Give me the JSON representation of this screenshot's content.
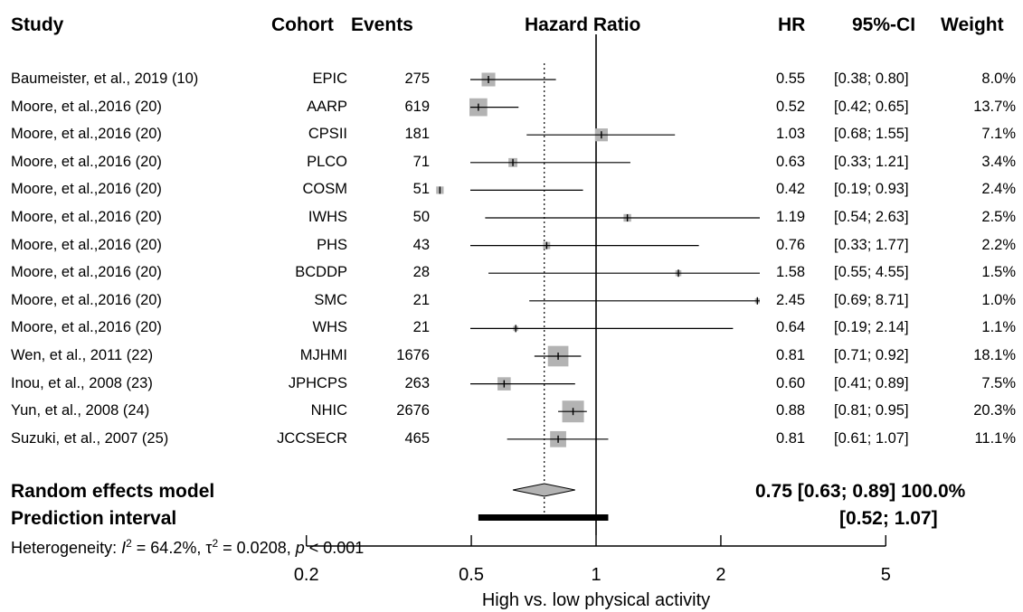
{
  "headers": {
    "study": "Study",
    "cohort": "Cohort",
    "events": "Events",
    "plot": "Hazard Ratio",
    "hr": "HR",
    "ci": "95%-CI",
    "weight": "Weight"
  },
  "chart_data": {
    "type": "forest",
    "x_scale": "log",
    "xlim": [
      0.2,
      5
    ],
    "x_ticks": [
      "0.2",
      "0.5",
      "1",
      "2",
      "5"
    ],
    "xlabel": "High vs. low physical activity",
    "null_line": 1,
    "pooled_line": 0.75,
    "studies": [
      {
        "study": "Baumeister, et al., 2019 (10)",
        "cohort": "EPIC",
        "events": "275",
        "hr": 0.55,
        "lo": 0.38,
        "hi": 0.8,
        "hr_text": "0.55",
        "ci_text": "[0.38; 0.80]",
        "weight_text": "8.0%",
        "weight": 8.0
      },
      {
        "study": "Moore, et al.,2016 (20)",
        "cohort": "AARP",
        "events": "619",
        "hr": 0.52,
        "lo": 0.42,
        "hi": 0.65,
        "hr_text": "0.52",
        "ci_text": "[0.42; 0.65]",
        "weight_text": "13.7%",
        "weight": 13.7
      },
      {
        "study": "Moore, et al.,2016 (20)",
        "cohort": "CPSII",
        "events": "181",
        "hr": 1.03,
        "lo": 0.68,
        "hi": 1.55,
        "hr_text": "1.03",
        "ci_text": "[0.68; 1.55]",
        "weight_text": "7.1%",
        "weight": 7.1
      },
      {
        "study": "Moore, et al.,2016 (20)",
        "cohort": "PLCO",
        "events": "71",
        "hr": 0.63,
        "lo": 0.33,
        "hi": 1.21,
        "hr_text": "0.63",
        "ci_text": "[0.33; 1.21]",
        "weight_text": "3.4%",
        "weight": 3.4
      },
      {
        "study": "Moore, et al.,2016 (20)",
        "cohort": "COSM",
        "events": "51",
        "hr": 0.42,
        "lo": 0.19,
        "hi": 0.93,
        "hr_text": "0.42",
        "ci_text": "[0.19; 0.93]",
        "weight_text": "2.4%",
        "weight": 2.4
      },
      {
        "study": "Moore, et al.,2016 (20)",
        "cohort": "IWHS",
        "events": "50",
        "hr": 1.19,
        "lo": 0.54,
        "hi": 2.63,
        "hr_text": "1.19",
        "ci_text": "[0.54; 2.63]",
        "weight_text": "2.5%",
        "weight": 2.5
      },
      {
        "study": "Moore, et al.,2016 (20)",
        "cohort": "PHS",
        "events": "43",
        "hr": 0.76,
        "lo": 0.33,
        "hi": 1.77,
        "hr_text": "0.76",
        "ci_text": "[0.33; 1.77]",
        "weight_text": "2.2%",
        "weight": 2.2
      },
      {
        "study": "Moore, et al.,2016 (20)",
        "cohort": "BCDDP",
        "events": "28",
        "hr": 1.58,
        "lo": 0.55,
        "hi": 4.55,
        "hr_text": "1.58",
        "ci_text": "[0.55; 4.55]",
        "weight_text": "1.5%",
        "weight": 1.5
      },
      {
        "study": "Moore, et al.,2016 (20)",
        "cohort": "SMC",
        "events": "21",
        "hr": 2.45,
        "lo": 0.69,
        "hi": 8.71,
        "hr_text": "2.45",
        "ci_text": "[0.69; 8.71]",
        "weight_text": "1.0%",
        "weight": 1.0
      },
      {
        "study": "Moore, et al.,2016 (20)",
        "cohort": "WHS",
        "events": "21",
        "hr": 0.64,
        "lo": 0.19,
        "hi": 2.14,
        "hr_text": "0.64",
        "ci_text": "[0.19; 2.14]",
        "weight_text": "1.1%",
        "weight": 1.1
      },
      {
        "study": "Wen, et al., 2011 (22)",
        "cohort": "MJHMI",
        "events": "1676",
        "hr": 0.81,
        "lo": 0.71,
        "hi": 0.92,
        "hr_text": "0.81",
        "ci_text": "[0.71; 0.92]",
        "weight_text": "18.1%",
        "weight": 18.1
      },
      {
        "study": "Inou, et al., 2008 (23)",
        "cohort": "JPHCPS",
        "events": "263",
        "hr": 0.6,
        "lo": 0.41,
        "hi": 0.89,
        "hr_text": "0.60",
        "ci_text": "[0.41; 0.89]",
        "weight_text": "7.5%",
        "weight": 7.5
      },
      {
        "study": "Yun, et al., 2008 (24)",
        "cohort": "NHIC",
        "events": "2676",
        "hr": 0.88,
        "lo": 0.81,
        "hi": 0.95,
        "hr_text": "0.88",
        "ci_text": "[0.81; 0.95]",
        "weight_text": "20.3%",
        "weight": 20.3
      },
      {
        "study": "Suzuki, et al., 2007 (25)",
        "cohort": "JCCSECR",
        "events": "465",
        "hr": 0.81,
        "lo": 0.61,
        "hi": 1.07,
        "hr_text": "0.81",
        "ci_text": "[0.61; 1.07]",
        "weight_text": "11.1%",
        "weight": 11.1
      }
    ],
    "random_effects": {
      "label": "Random effects model",
      "hr": 0.75,
      "lo": 0.63,
      "hi": 0.89,
      "summary_text": "0.75 [0.63; 0.89] 100.0%"
    },
    "prediction_interval": {
      "label": "Prediction interval",
      "lo": 0.52,
      "hi": 1.07,
      "text": "[0.52; 1.07]"
    },
    "heterogeneity": {
      "prefix": "Heterogeneity: ",
      "i2_value": " = 64.2%, ",
      "tau2_value": " = 0.0208, ",
      "p_value": " < 0.001"
    },
    "colors": {
      "box": "#b3b3b3",
      "diamond": "#b3b3b3",
      "line": "#000000"
    }
  }
}
